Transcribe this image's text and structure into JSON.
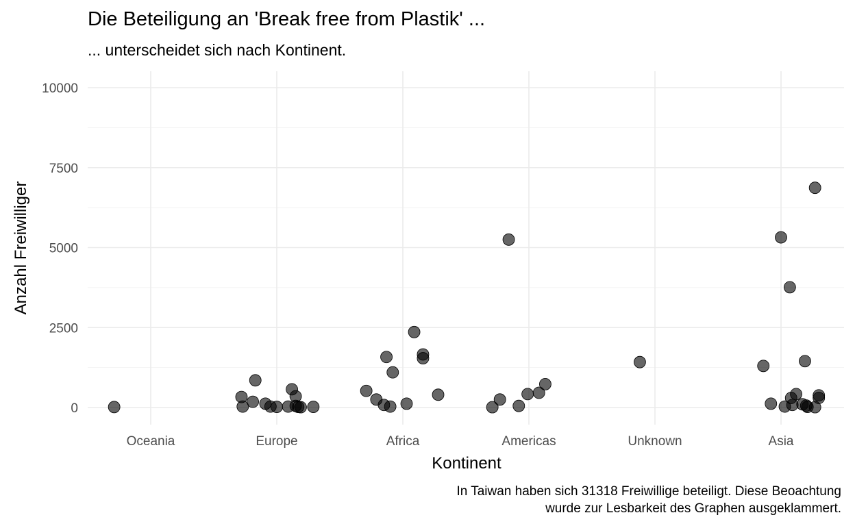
{
  "chart_data": {
    "type": "scatter",
    "title": "Die Beteiligung an 'Break free from Plastik' ...",
    "subtitle": "... unterscheidet sich nach Kontinent.",
    "xlabel": "Kontinent",
    "ylabel": "Anzahl Freiwilliger",
    "categories": [
      "Oceania",
      "Europe",
      "Africa",
      "Americas",
      "Unknown",
      "Asia"
    ],
    "ylim": [
      -550,
      10500
    ],
    "yticks": [
      0,
      2500,
      5000,
      7500,
      10000
    ],
    "ytick_labels": [
      "0",
      "2500",
      "5000",
      "7500",
      "10000"
    ],
    "grid": true,
    "points": [
      {
        "cat": "Oceania",
        "jitter": -0.29,
        "y": 15
      },
      {
        "cat": "Europe",
        "jitter": -0.28,
        "y": 330
      },
      {
        "cat": "Europe",
        "jitter": -0.27,
        "y": 30
      },
      {
        "cat": "Europe",
        "jitter": -0.19,
        "y": 180
      },
      {
        "cat": "Europe",
        "jitter": -0.17,
        "y": 850
      },
      {
        "cat": "Europe",
        "jitter": -0.09,
        "y": 120
      },
      {
        "cat": "Europe",
        "jitter": -0.05,
        "y": 30
      },
      {
        "cat": "Europe",
        "jitter": 0.0,
        "y": 20
      },
      {
        "cat": "Europe",
        "jitter": 0.09,
        "y": 30
      },
      {
        "cat": "Europe",
        "jitter": 0.12,
        "y": 570
      },
      {
        "cat": "Europe",
        "jitter": 0.15,
        "y": 350
      },
      {
        "cat": "Europe",
        "jitter": 0.15,
        "y": 50
      },
      {
        "cat": "Europe",
        "jitter": 0.17,
        "y": 20
      },
      {
        "cat": "Europe",
        "jitter": 0.19,
        "y": 10
      },
      {
        "cat": "Europe",
        "jitter": 0.29,
        "y": 20
      },
      {
        "cat": "Africa",
        "jitter": -0.29,
        "y": 520
      },
      {
        "cat": "Africa",
        "jitter": -0.21,
        "y": 250
      },
      {
        "cat": "Africa",
        "jitter": -0.15,
        "y": 80
      },
      {
        "cat": "Africa",
        "jitter": -0.13,
        "y": 1580
      },
      {
        "cat": "Africa",
        "jitter": -0.1,
        "y": 30
      },
      {
        "cat": "Africa",
        "jitter": -0.08,
        "y": 1100
      },
      {
        "cat": "Africa",
        "jitter": 0.03,
        "y": 120
      },
      {
        "cat": "Africa",
        "jitter": 0.09,
        "y": 2360
      },
      {
        "cat": "Africa",
        "jitter": 0.16,
        "y": 1660
      },
      {
        "cat": "Africa",
        "jitter": 0.16,
        "y": 1540
      },
      {
        "cat": "Africa",
        "jitter": 0.28,
        "y": 400
      },
      {
        "cat": "Americas",
        "jitter": -0.29,
        "y": 10
      },
      {
        "cat": "Americas",
        "jitter": -0.23,
        "y": 250
      },
      {
        "cat": "Americas",
        "jitter": -0.16,
        "y": 5250
      },
      {
        "cat": "Americas",
        "jitter": -0.08,
        "y": 50
      },
      {
        "cat": "Americas",
        "jitter": -0.01,
        "y": 420
      },
      {
        "cat": "Americas",
        "jitter": 0.08,
        "y": 460
      },
      {
        "cat": "Americas",
        "jitter": 0.13,
        "y": 730
      },
      {
        "cat": "Unknown",
        "jitter": -0.12,
        "y": 1420
      },
      {
        "cat": "Asia",
        "jitter": -0.14,
        "y": 1300
      },
      {
        "cat": "Asia",
        "jitter": -0.08,
        "y": 120
      },
      {
        "cat": "Asia",
        "jitter": 0.0,
        "y": 5320
      },
      {
        "cat": "Asia",
        "jitter": 0.03,
        "y": 30
      },
      {
        "cat": "Asia",
        "jitter": 0.07,
        "y": 3760
      },
      {
        "cat": "Asia",
        "jitter": 0.08,
        "y": 300
      },
      {
        "cat": "Asia",
        "jitter": 0.09,
        "y": 80
      },
      {
        "cat": "Asia",
        "jitter": 0.12,
        "y": 420
      },
      {
        "cat": "Asia",
        "jitter": 0.17,
        "y": 100
      },
      {
        "cat": "Asia",
        "jitter": 0.19,
        "y": 1450
      },
      {
        "cat": "Asia",
        "jitter": 0.2,
        "y": 60
      },
      {
        "cat": "Asia",
        "jitter": 0.21,
        "y": 20
      },
      {
        "cat": "Asia",
        "jitter": 0.27,
        "y": 6870
      },
      {
        "cat": "Asia",
        "jitter": 0.27,
        "y": 10
      },
      {
        "cat": "Asia",
        "jitter": 0.3,
        "y": 380
      },
      {
        "cat": "Asia",
        "jitter": 0.3,
        "y": 300
      }
    ],
    "caption_line1": "In Taiwan haben sich 31318 Freiwillige beteiligt. Diese Beoachtung",
    "caption_line2": "wurde zur Lesbarkeit des Graphen ausgeklammert."
  }
}
